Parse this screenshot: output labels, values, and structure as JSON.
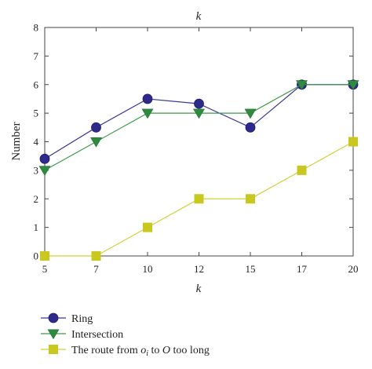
{
  "chart_data": {
    "type": "line",
    "title": "k",
    "xlabel": "k",
    "ylabel": "Number",
    "x": [
      5,
      7,
      10,
      12,
      15,
      17,
      20
    ],
    "ylim": [
      0,
      8
    ],
    "yticks": [
      0,
      1,
      2,
      3,
      4,
      5,
      6,
      7,
      8
    ],
    "grid": false,
    "legend_position": "bottom-left",
    "series": [
      {
        "name": "Ring",
        "marker": "circle",
        "color": "#2e2a8c",
        "line_color": "#3b3696",
        "values": [
          3.4,
          4.5,
          5.5,
          5.33,
          4.5,
          6,
          6
        ]
      },
      {
        "name": "Intersection",
        "marker": "triangle-down",
        "color": "#2e8b3e",
        "line_color": "#3c9a4a",
        "values": [
          3,
          4,
          5,
          5,
          5,
          6,
          6
        ]
      },
      {
        "name_parts": [
          "The route from ",
          "o",
          "i",
          " to ",
          "O",
          " too long"
        ],
        "marker": "square",
        "color": "#c8c81e",
        "line_color": "#d0cf3a",
        "values": [
          0,
          0,
          1,
          2,
          2,
          3,
          4
        ]
      }
    ]
  }
}
